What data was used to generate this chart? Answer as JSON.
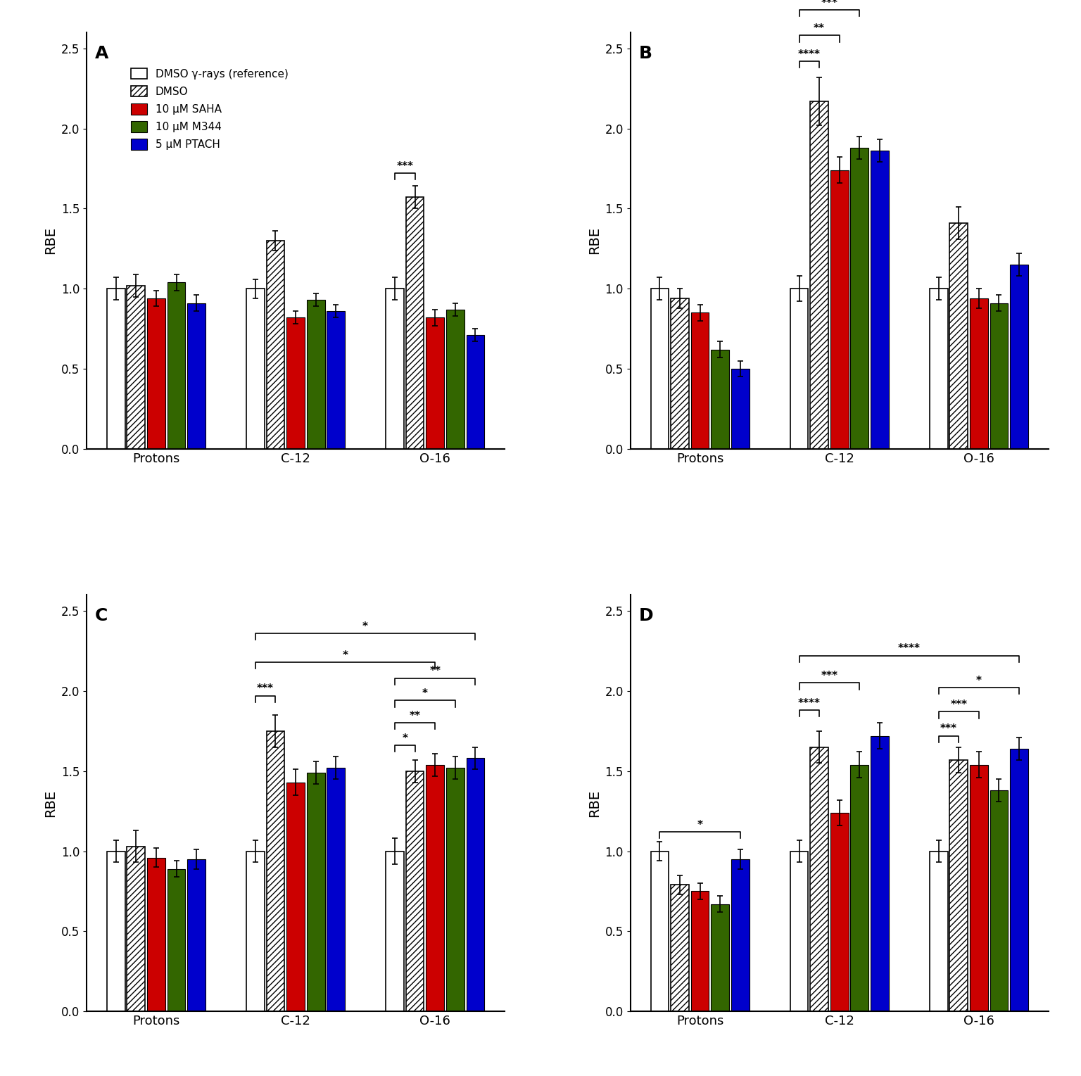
{
  "panels": {
    "A": {
      "groups": [
        "Protons",
        "C-12",
        "O-16"
      ],
      "bars": {
        "white": [
          1.0,
          1.0,
          1.0
        ],
        "hatch": [
          1.02,
          1.3,
          1.57
        ],
        "red": [
          0.94,
          0.82,
          0.82
        ],
        "green": [
          1.04,
          0.93,
          0.87
        ],
        "blue": [
          0.91,
          0.86,
          0.71
        ]
      },
      "errors": {
        "white": [
          0.07,
          0.06,
          0.07
        ],
        "hatch": [
          0.07,
          0.06,
          0.07
        ],
        "red": [
          0.05,
          0.04,
          0.05
        ],
        "green": [
          0.05,
          0.04,
          0.04
        ],
        "blue": [
          0.05,
          0.04,
          0.04
        ]
      }
    },
    "B": {
      "groups": [
        "Protons",
        "C-12",
        "O-16"
      ],
      "bars": {
        "white": [
          1.0,
          1.0,
          1.0
        ],
        "hatch": [
          0.94,
          2.17,
          1.41
        ],
        "red": [
          0.85,
          1.74,
          0.94
        ],
        "green": [
          0.62,
          1.88,
          0.91
        ],
        "blue": [
          0.5,
          1.86,
          1.15
        ]
      },
      "errors": {
        "white": [
          0.07,
          0.08,
          0.07
        ],
        "hatch": [
          0.06,
          0.15,
          0.1
        ],
        "red": [
          0.05,
          0.08,
          0.06
        ],
        "green": [
          0.05,
          0.07,
          0.05
        ],
        "blue": [
          0.05,
          0.07,
          0.07
        ]
      }
    },
    "C": {
      "groups": [
        "Protons",
        "C-12",
        "O-16"
      ],
      "bars": {
        "white": [
          1.0,
          1.0,
          1.0
        ],
        "hatch": [
          1.03,
          1.75,
          1.5
        ],
        "red": [
          0.96,
          1.43,
          1.54
        ],
        "green": [
          0.89,
          1.49,
          1.52
        ],
        "blue": [
          0.95,
          1.52,
          1.58
        ]
      },
      "errors": {
        "white": [
          0.07,
          0.07,
          0.08
        ],
        "hatch": [
          0.1,
          0.1,
          0.07
        ],
        "red": [
          0.06,
          0.08,
          0.07
        ],
        "green": [
          0.05,
          0.07,
          0.07
        ],
        "blue": [
          0.06,
          0.07,
          0.07
        ]
      }
    },
    "D": {
      "groups": [
        "Protons",
        "C-12",
        "O-16"
      ],
      "bars": {
        "white": [
          1.0,
          1.0,
          1.0
        ],
        "hatch": [
          0.79,
          1.65,
          1.57
        ],
        "red": [
          0.75,
          1.24,
          1.54
        ],
        "green": [
          0.67,
          1.54,
          1.38
        ],
        "blue": [
          0.95,
          1.72,
          1.64
        ]
      },
      "errors": {
        "white": [
          0.06,
          0.07,
          0.07
        ],
        "hatch": [
          0.06,
          0.1,
          0.08
        ],
        "red": [
          0.05,
          0.08,
          0.08
        ],
        "green": [
          0.05,
          0.08,
          0.07
        ],
        "blue": [
          0.06,
          0.08,
          0.07
        ]
      }
    }
  },
  "bar_colors": {
    "white": "#ffffff",
    "hatch": "#ffffff",
    "red": "#cc0000",
    "green": "#336600",
    "blue": "#0000cc"
  },
  "ylabel": "RBE",
  "ylim": [
    0,
    2.6
  ],
  "yticks": [
    0.0,
    0.5,
    1.0,
    1.5,
    2.0,
    2.5
  ],
  "background_color": "#ffffff",
  "panel_labels": [
    "A",
    "B",
    "C",
    "D"
  ],
  "group_labels": [
    "Protons",
    "C-12",
    "O-16"
  ],
  "legend_labels": [
    "DMSO γ-rays (reference)",
    "DMSO",
    "10 μM SAHA",
    "10 μM M344",
    "5 μM PTACH"
  ]
}
